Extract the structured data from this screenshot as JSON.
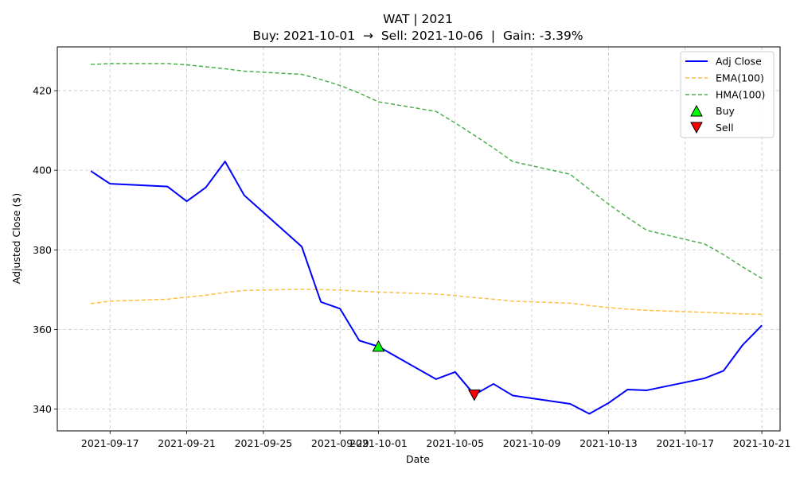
{
  "chart_data": {
    "type": "line",
    "title": "WAT | 2021",
    "subtitle": "Buy: 2021-10-01  →  Sell: 2021-10-06  |  Gain: -3.39%",
    "xlabel": "Date",
    "ylabel": "Adjusted Close ($)",
    "xlim": [
      "2021-09-14",
      "2021-10-22"
    ],
    "ylim": [
      334.5,
      431
    ],
    "x_ticks": [
      "2021-09-17",
      "2021-09-21",
      "2021-09-25",
      "2021-09-29",
      "2021-10-01",
      "2021-10-05",
      "2021-10-09",
      "2021-10-13",
      "2021-10-17",
      "2021-10-21"
    ],
    "y_ticks": [
      340,
      360,
      380,
      400,
      420
    ],
    "grid": true,
    "legend_position": "top-right",
    "legend": [
      "Adj Close",
      "EMA(100)",
      "HMA(100)",
      "Buy",
      "Sell"
    ],
    "series": [
      {
        "name": "Adj Close",
        "color": "#0000ff",
        "style": "solid",
        "x": [
          "2021-09-16",
          "2021-09-17",
          "2021-09-20",
          "2021-09-21",
          "2021-09-22",
          "2021-09-23",
          "2021-09-24",
          "2021-09-27",
          "2021-09-28",
          "2021-09-29",
          "2021-09-30",
          "2021-10-01",
          "2021-10-04",
          "2021-10-05",
          "2021-10-06",
          "2021-10-07",
          "2021-10-08",
          "2021-10-11",
          "2021-10-12",
          "2021-10-13",
          "2021-10-14",
          "2021-10-15",
          "2021-10-18",
          "2021-10-19",
          "2021-10-20",
          "2021-10-21"
        ],
        "y": [
          399.8,
          396.6,
          395.9,
          392.2,
          395.7,
          402.2,
          393.7,
          380.8,
          366.9,
          365.2,
          357.2,
          355.7,
          347.5,
          349.3,
          343.6,
          346.3,
          343.4,
          341.3,
          338.8,
          341.5,
          344.9,
          344.7,
          347.7,
          349.6,
          356.1,
          361.0
        ]
      },
      {
        "name": "EMA(100)",
        "color": "#ffa500",
        "style": "dashed",
        "x": [
          "2021-09-16",
          "2021-09-17",
          "2021-09-20",
          "2021-09-21",
          "2021-09-22",
          "2021-09-23",
          "2021-09-24",
          "2021-09-27",
          "2021-09-28",
          "2021-09-29",
          "2021-09-30",
          "2021-10-01",
          "2021-10-04",
          "2021-10-05",
          "2021-10-06",
          "2021-10-07",
          "2021-10-08",
          "2021-10-11",
          "2021-10-12",
          "2021-10-13",
          "2021-10-14",
          "2021-10-15",
          "2021-10-18",
          "2021-10-19",
          "2021-10-20",
          "2021-10-21"
        ],
        "y": [
          366.5,
          367.1,
          367.6,
          368.1,
          368.6,
          369.3,
          369.8,
          370.1,
          370.0,
          369.9,
          369.6,
          369.4,
          368.9,
          368.5,
          368.0,
          367.6,
          367.1,
          366.6,
          366.0,
          365.5,
          365.1,
          364.8,
          364.3,
          364.1,
          363.9,
          363.8
        ]
      },
      {
        "name": "HMA(100)",
        "color": "#2ca02c",
        "style": "dashed",
        "x": [
          "2021-09-16",
          "2021-09-17",
          "2021-09-20",
          "2021-09-21",
          "2021-09-22",
          "2021-09-23",
          "2021-09-24",
          "2021-09-27",
          "2021-09-28",
          "2021-09-29",
          "2021-09-30",
          "2021-10-01",
          "2021-10-04",
          "2021-10-05",
          "2021-10-06",
          "2021-10-07",
          "2021-10-08",
          "2021-10-11",
          "2021-10-12",
          "2021-10-13",
          "2021-10-14",
          "2021-10-15",
          "2021-10-18",
          "2021-10-19",
          "2021-10-20",
          "2021-10-21"
        ],
        "y": [
          426.6,
          426.8,
          426.8,
          426.5,
          426.0,
          425.5,
          424.9,
          424.1,
          422.8,
          421.3,
          419.4,
          417.2,
          414.8,
          411.9,
          408.8,
          405.6,
          402.2,
          399.0,
          395.2,
          391.5,
          388.1,
          384.9,
          381.5,
          378.8,
          375.7,
          372.8
        ]
      }
    ],
    "markers": [
      {
        "name": "Buy",
        "date": "2021-10-01",
        "value": 355.7,
        "symbol": "triangle-up",
        "color": "#00ff00"
      },
      {
        "name": "Sell",
        "date": "2021-10-06",
        "value": 343.6,
        "symbol": "triangle-down",
        "color": "#ff0000"
      }
    ]
  }
}
